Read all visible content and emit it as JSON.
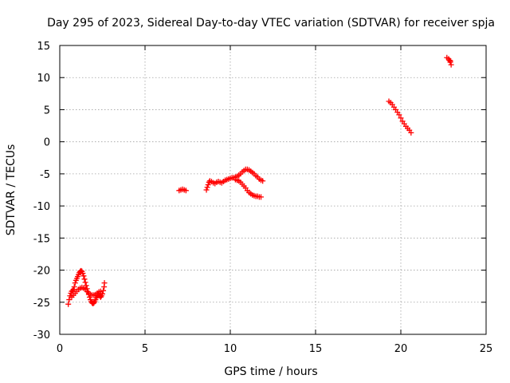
{
  "chart_data": {
    "type": "scatter",
    "title": "Day 295 of 2023, Sidereal Day-to-day VTEC variation (SDTVAR) for receiver spja",
    "xlabel": "GPS time / hours",
    "ylabel": "SDTVAR / TECUs",
    "xlim": [
      0,
      25
    ],
    "ylim": [
      -30,
      15
    ],
    "xticks": [
      "0",
      "5",
      "10",
      "15",
      "20",
      "25"
    ],
    "yticks": [
      "-30",
      "-25",
      "-20",
      "-15",
      "-10",
      "-5",
      "0",
      "5",
      "10",
      "15"
    ],
    "grid": true,
    "marker": "+",
    "color": "#ff0000",
    "series": [
      {
        "points": [
          [
            0.5,
            -25.3
          ],
          [
            0.55,
            -24.6
          ],
          [
            0.6,
            -24.0
          ],
          [
            0.65,
            -23.6
          ],
          [
            0.7,
            -23.3
          ],
          [
            0.75,
            -23.2
          ],
          [
            0.8,
            -23.0
          ],
          [
            0.85,
            -22.6
          ],
          [
            0.9,
            -22.0
          ],
          [
            0.95,
            -21.6
          ],
          [
            1.0,
            -21.3
          ],
          [
            1.05,
            -21.0
          ],
          [
            1.1,
            -20.7
          ],
          [
            1.15,
            -20.4
          ],
          [
            1.2,
            -20.2
          ],
          [
            1.25,
            -20.1
          ],
          [
            1.3,
            -20.2
          ],
          [
            1.35,
            -20.5
          ],
          [
            1.4,
            -20.9
          ],
          [
            1.45,
            -21.4
          ],
          [
            1.5,
            -21.9
          ],
          [
            1.55,
            -22.4
          ],
          [
            1.6,
            -22.9
          ],
          [
            1.65,
            -23.4
          ],
          [
            1.7,
            -23.8
          ],
          [
            1.75,
            -24.2
          ],
          [
            1.8,
            -24.6
          ],
          [
            1.85,
            -24.9
          ],
          [
            1.9,
            -25.1
          ],
          [
            1.95,
            -25.2
          ],
          [
            2.0,
            -25.1
          ],
          [
            2.05,
            -24.9
          ],
          [
            2.1,
            -24.6
          ],
          [
            2.15,
            -24.3
          ],
          [
            2.2,
            -24.0
          ],
          [
            2.25,
            -23.8
          ],
          [
            2.3,
            -23.8
          ],
          [
            2.35,
            -24.0
          ],
          [
            2.4,
            -24.2
          ],
          [
            2.45,
            -24.0
          ],
          [
            2.5,
            -23.7
          ],
          [
            2.55,
            -23.2
          ],
          [
            2.6,
            -22.6
          ],
          [
            2.62,
            -22.0
          ],
          [
            0.7,
            -24.2
          ],
          [
            0.8,
            -23.9
          ],
          [
            0.9,
            -23.6
          ],
          [
            1.0,
            -23.3
          ],
          [
            1.1,
            -23.0
          ],
          [
            1.2,
            -22.8
          ],
          [
            1.3,
            -22.7
          ],
          [
            1.4,
            -22.8
          ],
          [
            1.5,
            -23.0
          ],
          [
            1.6,
            -23.3
          ],
          [
            1.7,
            -23.6
          ],
          [
            1.8,
            -23.8
          ],
          [
            1.9,
            -23.9
          ],
          [
            2.0,
            -23.9
          ],
          [
            2.1,
            -23.8
          ],
          [
            2.2,
            -23.6
          ],
          [
            2.3,
            -23.4
          ],
          [
            2.4,
            -23.3
          ]
        ]
      },
      {
        "points": [
          [
            7.0,
            -7.6
          ],
          [
            7.1,
            -7.5
          ],
          [
            7.2,
            -7.4
          ],
          [
            7.3,
            -7.5
          ],
          [
            7.4,
            -7.6
          ]
        ]
      },
      {
        "points": [
          [
            8.6,
            -7.5
          ],
          [
            8.65,
            -7.1
          ],
          [
            8.7,
            -6.7
          ],
          [
            8.75,
            -6.3
          ],
          [
            8.8,
            -6.1
          ],
          [
            8.9,
            -6.2
          ],
          [
            9.0,
            -6.4
          ],
          [
            9.1,
            -6.5
          ],
          [
            9.2,
            -6.3
          ],
          [
            9.3,
            -6.2
          ],
          [
            9.4,
            -6.3
          ],
          [
            9.5,
            -6.4
          ],
          [
            9.6,
            -6.2
          ],
          [
            9.7,
            -6.0
          ],
          [
            9.8,
            -5.9
          ],
          [
            9.9,
            -5.8
          ],
          [
            10.0,
            -5.7
          ],
          [
            10.1,
            -5.6
          ],
          [
            10.2,
            -5.6
          ],
          [
            10.3,
            -5.5
          ],
          [
            10.4,
            -5.4
          ],
          [
            10.5,
            -5.2
          ],
          [
            10.6,
            -5.0
          ],
          [
            10.7,
            -4.7
          ],
          [
            10.8,
            -4.5
          ],
          [
            10.9,
            -4.3
          ],
          [
            11.0,
            -4.3
          ],
          [
            11.1,
            -4.4
          ],
          [
            11.2,
            -4.6
          ],
          [
            11.3,
            -4.8
          ],
          [
            11.4,
            -5.0
          ],
          [
            11.5,
            -5.3
          ],
          [
            11.6,
            -5.5
          ],
          [
            11.7,
            -5.8
          ],
          [
            11.8,
            -6.0
          ],
          [
            11.9,
            -6.1
          ],
          [
            10.3,
            -5.9
          ],
          [
            10.4,
            -6.0
          ],
          [
            10.5,
            -6.1
          ],
          [
            10.6,
            -6.3
          ],
          [
            10.7,
            -6.6
          ],
          [
            10.8,
            -6.9
          ],
          [
            10.9,
            -7.2
          ],
          [
            11.0,
            -7.6
          ],
          [
            11.1,
            -7.9
          ],
          [
            11.2,
            -8.1
          ],
          [
            11.3,
            -8.3
          ],
          [
            11.4,
            -8.4
          ],
          [
            11.5,
            -8.5
          ],
          [
            11.6,
            -8.5
          ],
          [
            11.7,
            -8.6
          ],
          [
            11.8,
            -8.6
          ]
        ]
      },
      {
        "points": [
          [
            19.3,
            6.3
          ],
          [
            19.4,
            6.1
          ],
          [
            19.5,
            5.8
          ],
          [
            19.6,
            5.4
          ],
          [
            19.7,
            5.0
          ],
          [
            19.8,
            4.6
          ],
          [
            19.9,
            4.2
          ],
          [
            20.0,
            3.7
          ],
          [
            20.1,
            3.2
          ],
          [
            20.2,
            2.8
          ],
          [
            20.3,
            2.4
          ],
          [
            20.4,
            2.1
          ],
          [
            20.5,
            1.8
          ],
          [
            20.6,
            1.4
          ]
        ]
      },
      {
        "points": [
          [
            22.7,
            13.1
          ],
          [
            22.8,
            12.9
          ],
          [
            22.85,
            12.7
          ],
          [
            22.9,
            12.4
          ],
          [
            22.95,
            12.0
          ],
          [
            22.9,
            12.6
          ]
        ]
      }
    ]
  }
}
